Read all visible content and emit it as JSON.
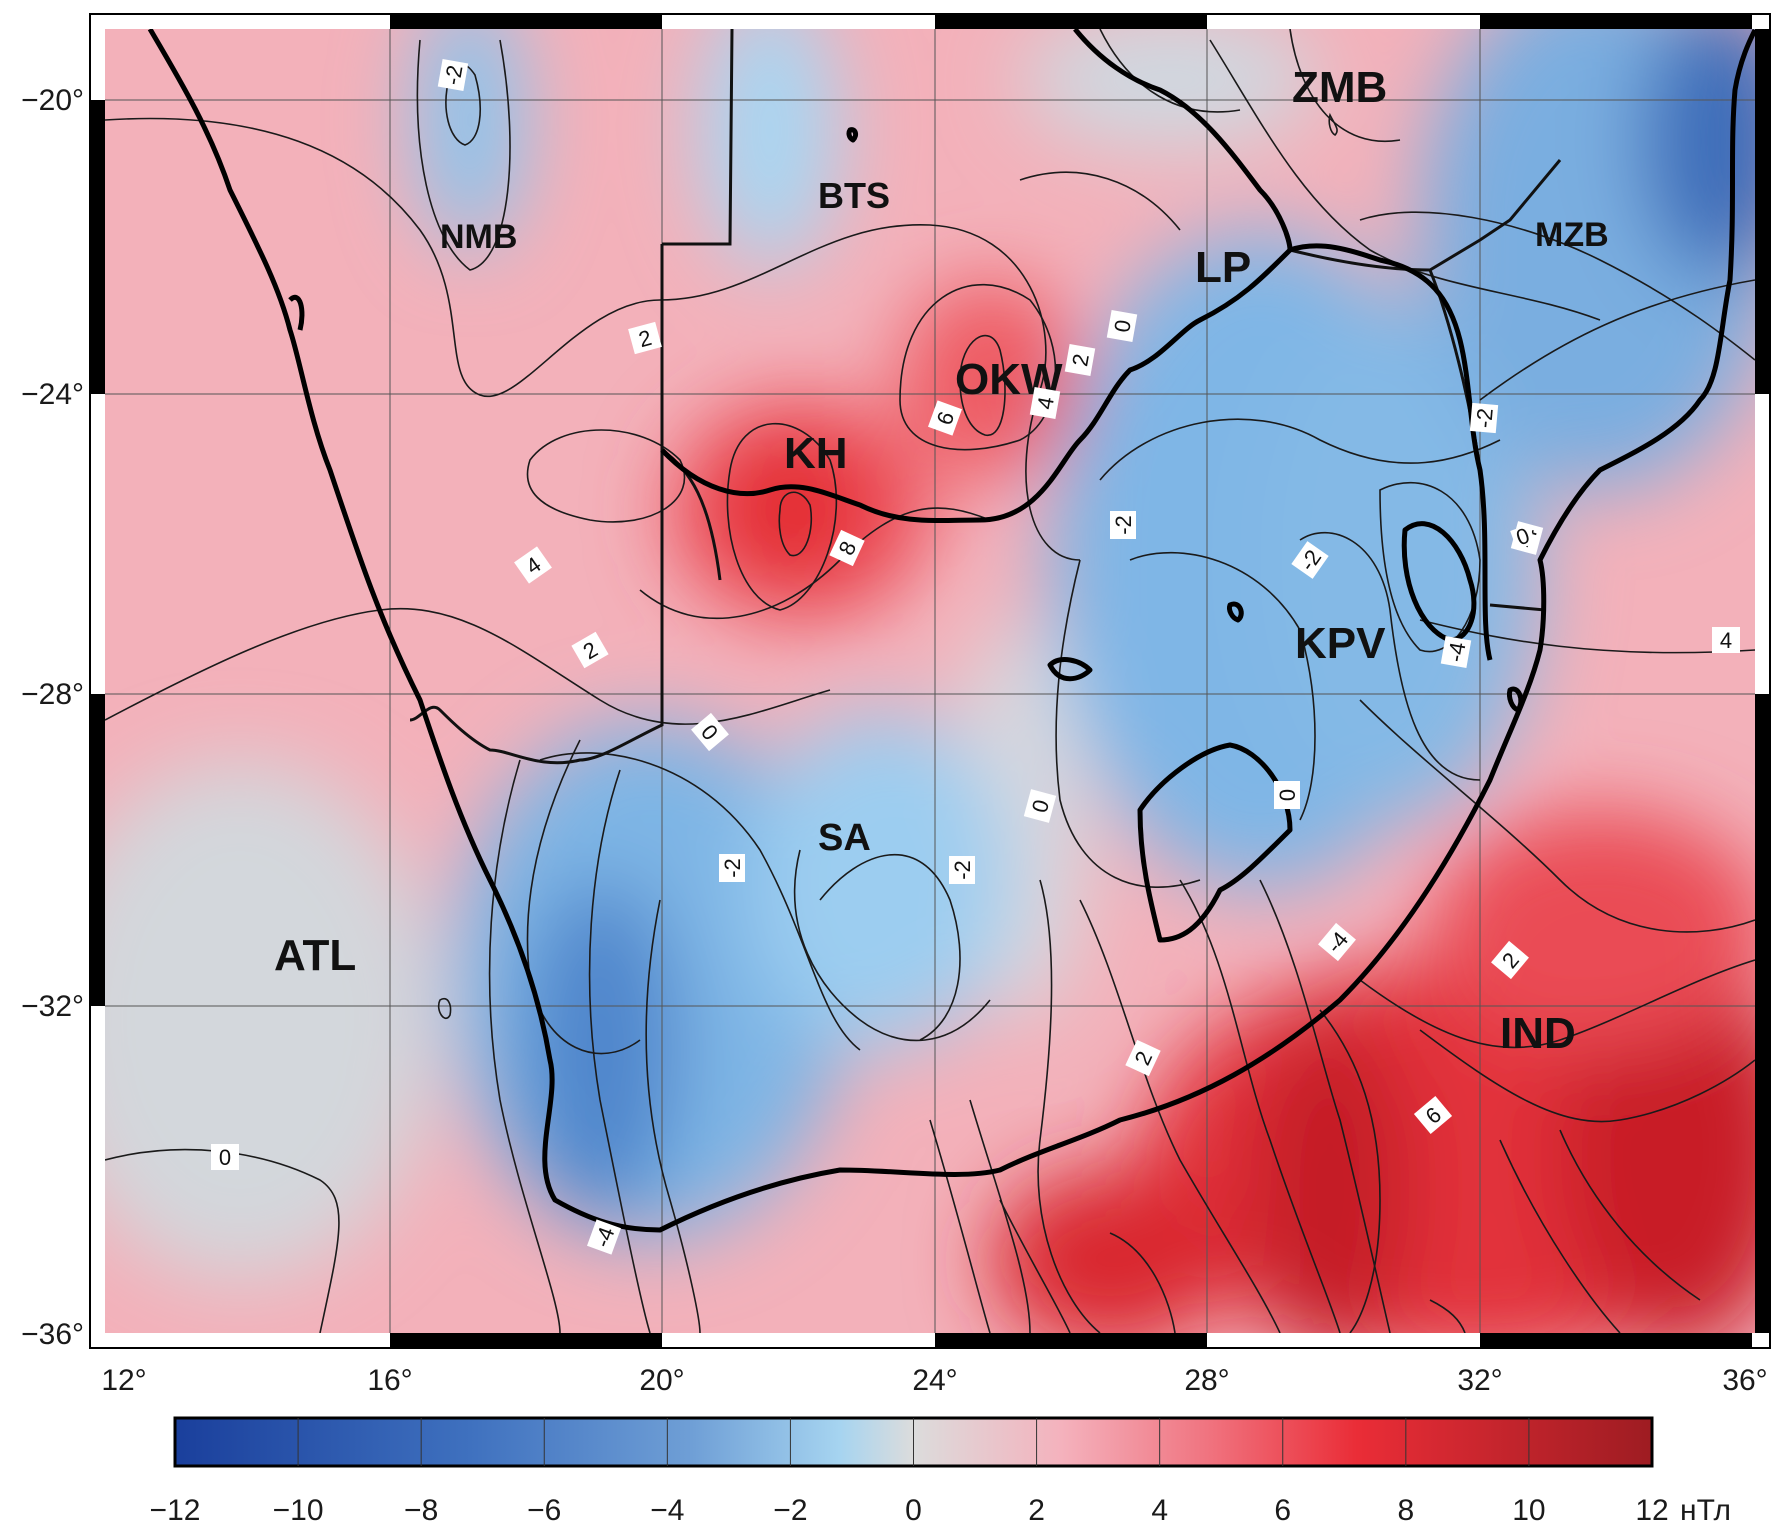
{
  "map": {
    "lon_ticks": [
      "12°",
      "16°",
      "20°",
      "24°",
      "28°",
      "32°",
      "36°"
    ],
    "lat_ticks": [
      "−20°",
      "−24°",
      "−28°",
      "−32°",
      "−36°"
    ],
    "regions": [
      {
        "id": "nmb",
        "label": "NMB"
      },
      {
        "id": "bts",
        "label": "BTS"
      },
      {
        "id": "zmb",
        "label": "ZMB"
      },
      {
        "id": "mzb",
        "label": "MZB"
      },
      {
        "id": "lp",
        "label": "LP"
      },
      {
        "id": "okw",
        "label": "OKW"
      },
      {
        "id": "kh",
        "label": "KH"
      },
      {
        "id": "kpv",
        "label": "KPV"
      },
      {
        "id": "sa",
        "label": "SA"
      },
      {
        "id": "atl",
        "label": "ATL"
      },
      {
        "id": "ind",
        "label": "IND"
      }
    ],
    "contour_labels": [
      {
        "id": "c1",
        "text": "-2"
      },
      {
        "id": "c2",
        "text": "2"
      },
      {
        "id": "c3",
        "text": "4"
      },
      {
        "id": "c4",
        "text": "2"
      },
      {
        "id": "c5",
        "text": "6"
      },
      {
        "id": "c6",
        "text": "4"
      },
      {
        "id": "c7",
        "text": "2"
      },
      {
        "id": "c8",
        "text": "0"
      },
      {
        "id": "c9",
        "text": "8"
      },
      {
        "id": "c10",
        "text": "0"
      },
      {
        "id": "c11",
        "text": "-2"
      },
      {
        "id": "c12",
        "text": "-2"
      },
      {
        "id": "c13",
        "text": "0"
      },
      {
        "id": "c14",
        "text": "-2"
      },
      {
        "id": "c15",
        "text": "-2"
      },
      {
        "id": "c16",
        "text": "0"
      },
      {
        "id": "c17",
        "text": "-4"
      },
      {
        "id": "c18",
        "text": "-2"
      },
      {
        "id": "c19",
        "text": "-4"
      },
      {
        "id": "c20",
        "text": "4"
      },
      {
        "id": "c21",
        "text": "-4"
      },
      {
        "id": "c22",
        "text": "2"
      },
      {
        "id": "c23",
        "text": "2"
      },
      {
        "id": "c24",
        "text": "6"
      },
      {
        "id": "c25",
        "text": "0"
      },
      {
        "id": "c26",
        "text": "-4"
      },
      {
        "id": "c27",
        "text": "0"
      }
    ]
  },
  "colorbar": {
    "ticks": [
      "−12",
      "−10",
      "−8",
      "−6",
      "−4",
      "−2",
      "0",
      "2",
      "4",
      "6",
      "8",
      "10",
      "12"
    ],
    "unit": "нТл",
    "range": [
      -12,
      12
    ],
    "colors": [
      "#1a3f9c",
      "#6f9fd6",
      "#a6d4f0",
      "#dcdcdc",
      "#f4b2bd",
      "#ea2d37",
      "#9e1c22"
    ]
  }
}
